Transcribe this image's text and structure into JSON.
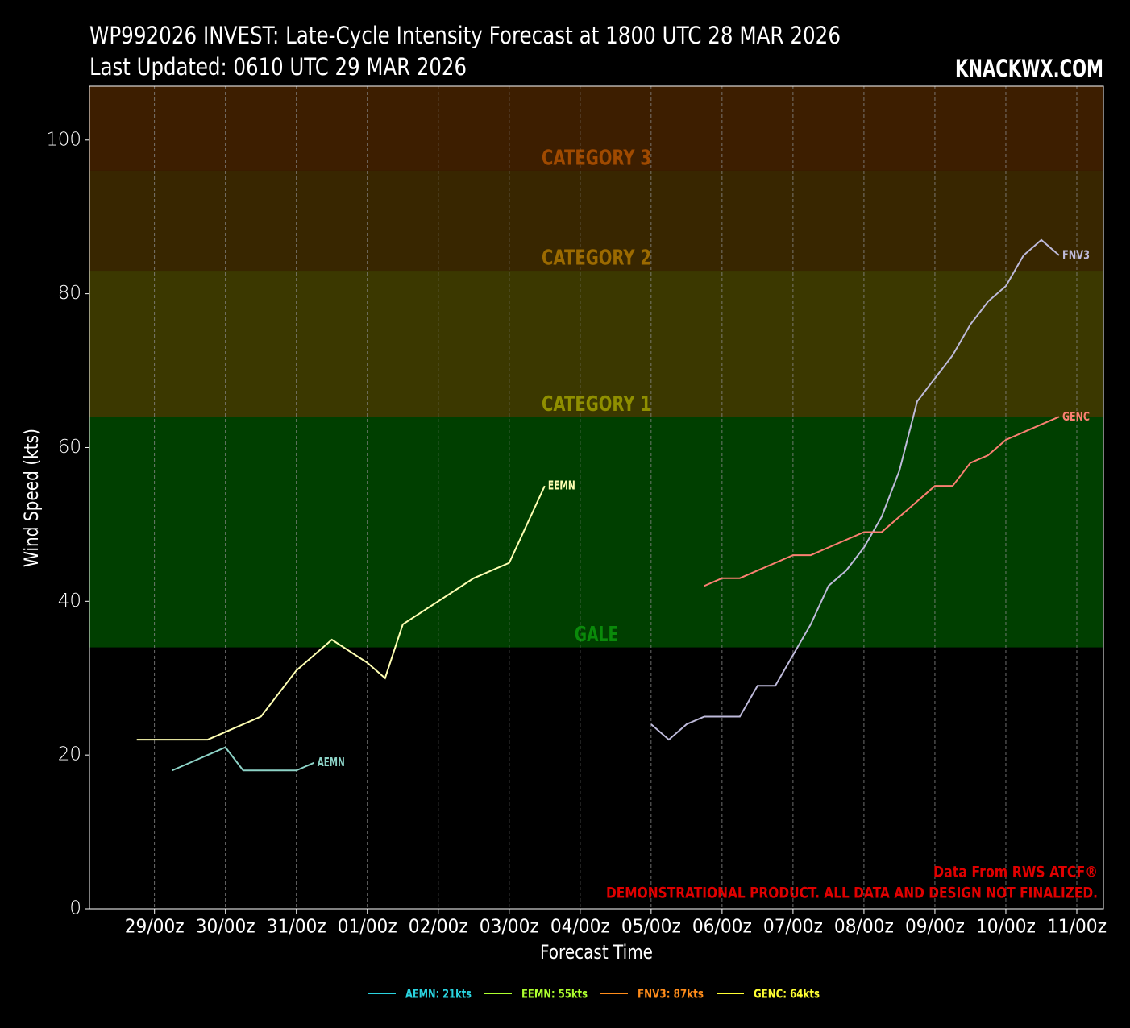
{
  "chart_data": {
    "type": "line",
    "title": "WP992026 INVEST: Late-Cycle Intensity Forecast at 1800 UTC 28 MAR 2026",
    "subtitle": "Last Updated: 0610 UTC 29 MAR 2026",
    "brand": "KNACKWX.COM",
    "x_label": "Forecast Time",
    "y_label": "Wind Speed (kts)",
    "annotations": [
      "Data From RWS ATCF®",
      "DEMONSTRATIONAL PRODUCT. ALL DATA AND DESIGN NOT FINALIZED."
    ],
    "xlim": [
      -16,
      327
    ],
    "xticks": [
      {
        "value": 6,
        "label": "29/00z"
      },
      {
        "value": 30,
        "label": "30/00z"
      },
      {
        "value": 54,
        "label": "31/00z"
      },
      {
        "value": 78,
        "label": "01/00z"
      },
      {
        "value": 102,
        "label": "02/00z"
      },
      {
        "value": 126,
        "label": "03/00z"
      },
      {
        "value": 150,
        "label": "04/00z"
      },
      {
        "value": 174,
        "label": "05/00z"
      },
      {
        "value": 198,
        "label": "06/00z"
      },
      {
        "value": 222,
        "label": "07/00z"
      },
      {
        "value": 246,
        "label": "08/00z"
      },
      {
        "value": 270,
        "label": "09/00z"
      },
      {
        "value": 294,
        "label": "10/00z"
      },
      {
        "value": 318,
        "label": "11/00z"
      }
    ],
    "ylim": [
      0,
      107
    ],
    "yticks": [
      0,
      20,
      40,
      60,
      80,
      100
    ],
    "grid": true,
    "bands": [
      {
        "label": "GALE",
        "from": 34,
        "to": 64,
        "color": "#003f00",
        "label_color": "#0a8a0a"
      },
      {
        "label": "CATEGORY 1",
        "from": 64,
        "to": 83,
        "color": "#3b3800",
        "label_color": "#8f8f00"
      },
      {
        "label": "CATEGORY 2",
        "from": 83,
        "to": 96,
        "color": "#382600",
        "label_color": "#9c6a00"
      },
      {
        "label": "CATEGORY 3",
        "from": 96,
        "to": 107,
        "color": "#3d1e00",
        "label_color": "#a04a00"
      }
    ],
    "series": [
      {
        "name": "AEMN",
        "legend_label": "AEMN: 21kts",
        "color": "#8dd3c7",
        "legend_color": "#2ad4e0",
        "x": [
          12,
          30,
          36,
          54,
          60
        ],
        "values": [
          18,
          21,
          18,
          18,
          19
        ]
      },
      {
        "name": "EEMN",
        "legend_label": "EEMN: 55kts",
        "color": "#ffffb3",
        "legend_color": "#adff2f",
        "x": [
          0,
          24,
          42,
          54,
          66,
          78,
          84,
          90,
          114,
          126,
          138
        ],
        "values": [
          22,
          22,
          25,
          31,
          35,
          32,
          30,
          37,
          43,
          45,
          55
        ]
      },
      {
        "name": "FNV3",
        "legend_label": "FNV3: 87kts",
        "color": "#bebada",
        "legend_color": "#ff8c1a",
        "x": [
          174,
          180,
          186,
          192,
          204,
          210,
          216,
          222,
          228,
          234,
          240,
          246,
          252,
          258,
          264,
          270,
          276,
          282,
          288,
          294,
          300,
          306,
          312
        ],
        "values": [
          24,
          22,
          24,
          25,
          25,
          29,
          29,
          33,
          37,
          42,
          44,
          47,
          51,
          57,
          66,
          69,
          72,
          76,
          79,
          81,
          85,
          87,
          85
        ]
      },
      {
        "name": "GENC",
        "legend_label": "GENC: 64kts",
        "color": "#fb8072",
        "legend_color": "#ffff33",
        "x": [
          192,
          198,
          204,
          222,
          228,
          246,
          252,
          270,
          276,
          282,
          288,
          294,
          312
        ],
        "values": [
          42,
          43,
          43,
          46,
          46,
          49,
          49,
          55,
          55,
          58,
          59,
          61,
          64
        ]
      }
    ]
  }
}
